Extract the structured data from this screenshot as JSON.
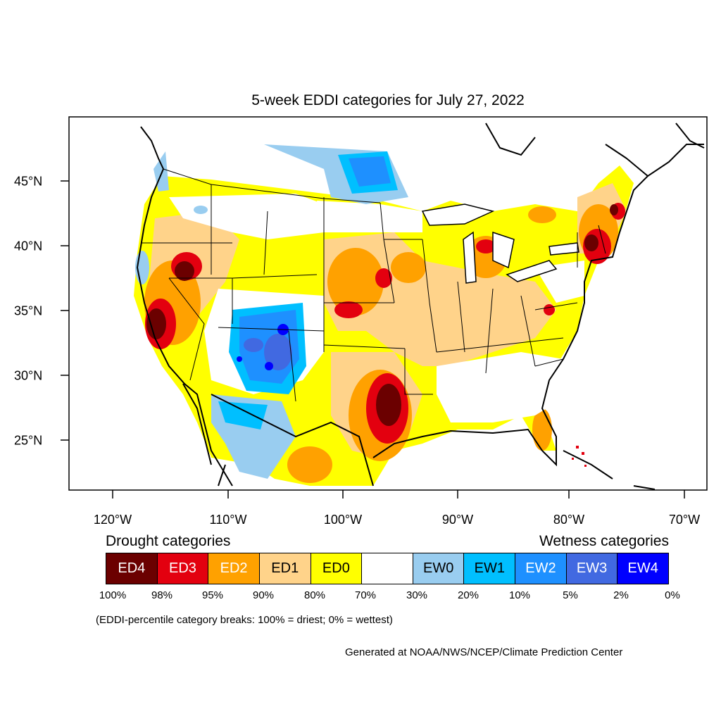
{
  "title": "5-week EDDI categories for July 27, 2022",
  "axes": {
    "lon": [
      "120°W",
      "110°W",
      "100°W",
      "90°W",
      "80°W",
      "70°W"
    ],
    "lat": [
      "45°N",
      "40°N",
      "35°N",
      "30°N",
      "25°N"
    ]
  },
  "legend": {
    "drought_heading": "Drought categories",
    "wetness_heading": "Wetness categories",
    "categories": [
      {
        "label": "ED4",
        "color": "#6b0000",
        "text_color": "#ffffff"
      },
      {
        "label": "ED3",
        "color": "#e3000f",
        "text_color": "#ffffff"
      },
      {
        "label": "ED2",
        "color": "#ffa100",
        "text_color": "#ffffff"
      },
      {
        "label": "ED1",
        "color": "#ffd38a",
        "text_color": "#000000"
      },
      {
        "label": "ED0",
        "color": "#ffff00",
        "text_color": "#000000"
      },
      {
        "label": "",
        "color": "#ffffff",
        "text_color": "#000000"
      },
      {
        "label": "EW0",
        "color": "#99cdf0",
        "text_color": "#000000"
      },
      {
        "label": "EW1",
        "color": "#00bfff",
        "text_color": "#000000"
      },
      {
        "label": "EW2",
        "color": "#1e90ff",
        "text_color": "#ffffff"
      },
      {
        "label": "EW3",
        "color": "#4169e1",
        "text_color": "#ffffff"
      },
      {
        "label": "EW4",
        "color": "#0000ff",
        "text_color": "#ffffff"
      }
    ],
    "breaks": [
      "100%",
      "98%",
      "95%",
      "90%",
      "80%",
      "70%",
      "30%",
      "20%",
      "10%",
      "5%",
      "2%",
      "0%"
    ]
  },
  "note": "(EDDI-percentile category breaks: 100% = driest; 0% = wettest)",
  "credit": "Generated at NOAA/NWS/NCEP/Climate Prediction Center"
}
